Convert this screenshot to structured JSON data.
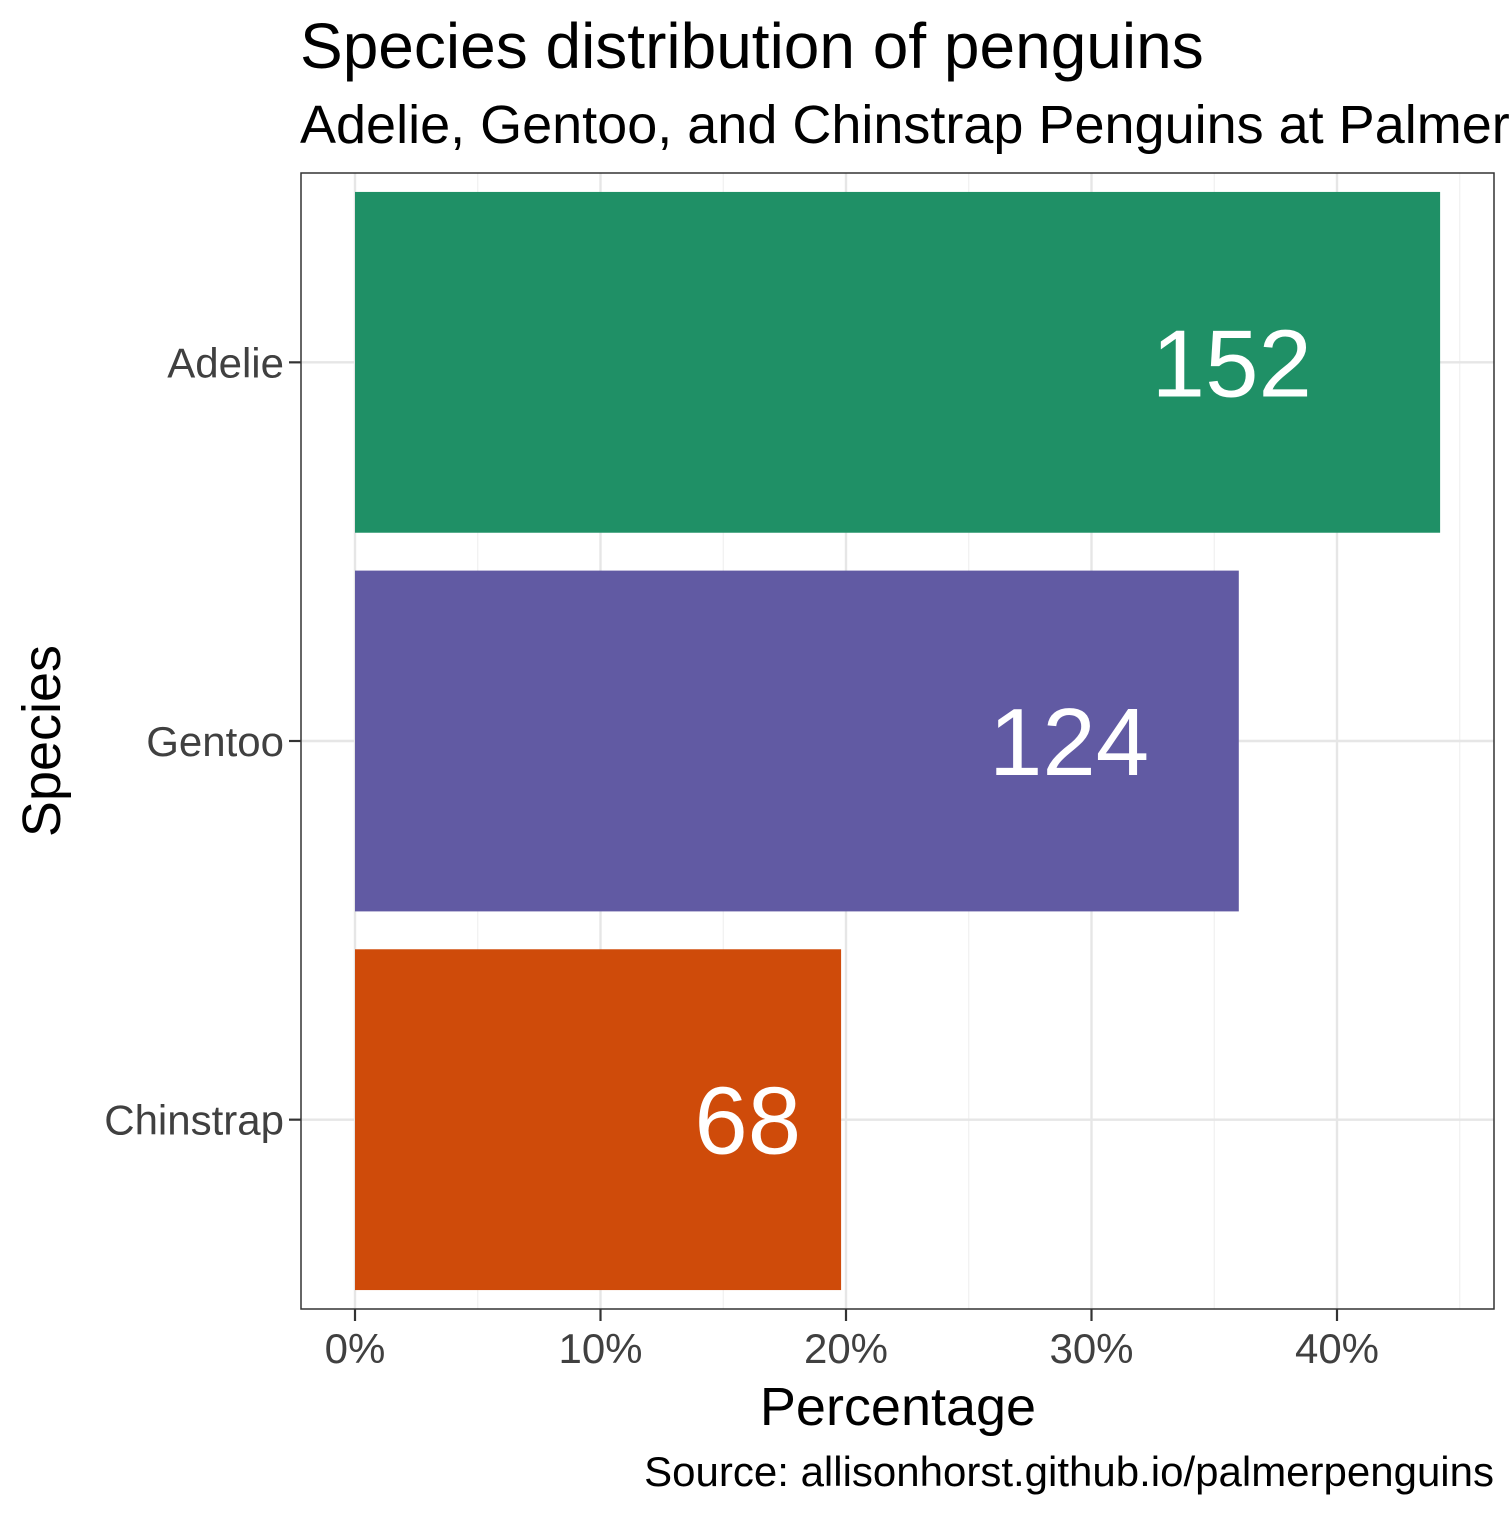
{
  "chart_data": {
    "type": "bar",
    "orientation": "horizontal",
    "title": "Species distribution of penguins",
    "subtitle": "Adelie, Gentoo, and Chinstrap Penguins at Palmer Station",
    "xlabel": "Percentage",
    "ylabel": "Species",
    "caption": "Source: allisonhorst.github.io/palmerpenguins",
    "categories": [
      "Adelie",
      "Gentoo",
      "Chinstrap"
    ],
    "values": [
      44.2,
      36.0,
      19.8
    ],
    "data_labels": [
      "152",
      "124",
      "68"
    ],
    "colors": [
      "#1b9e77",
      "#7570b3",
      "#d95f02"
    ],
    "bar_colors_rendered": [
      "#1f9066",
      "#615aa3",
      "#cf4b0a"
    ],
    "xlim": [
      0,
      46.5
    ],
    "xticks": [
      0,
      10,
      20,
      30,
      40
    ],
    "xtick_labels": [
      "0%",
      "10%",
      "20%",
      "30%",
      "40%"
    ],
    "grid": true,
    "legend": "none"
  }
}
